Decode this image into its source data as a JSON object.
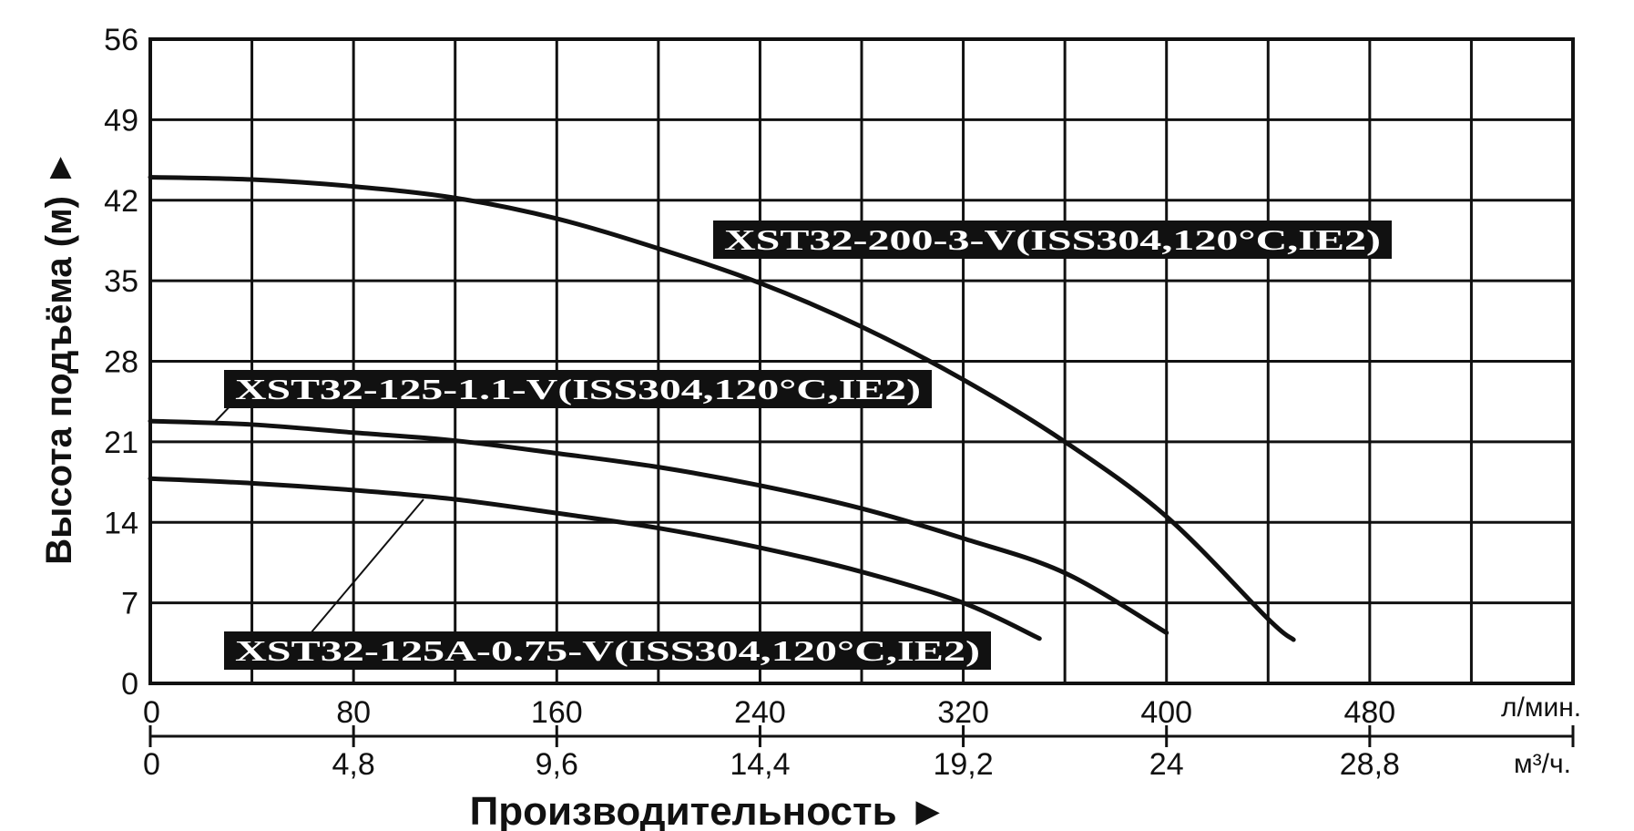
{
  "chart_data": {
    "type": "line",
    "ylabel": "Высота подъёма (м) ►",
    "xlabel": "Производительность ►",
    "ylim": [
      0,
      56
    ],
    "yticks": [
      "0",
      "7",
      "14",
      "21",
      "28",
      "35",
      "42",
      "49",
      "56"
    ],
    "xlim": [
      0,
      560
    ],
    "x_units_primary": "л/мин.",
    "x_units_secondary": "м³/ч.",
    "xticks_primary": [
      "0",
      "80",
      "160",
      "240",
      "320",
      "400",
      "480"
    ],
    "xticks_secondary": [
      "0",
      "4,8",
      "9,6",
      "14,4",
      "19,2",
      "24",
      "28,8"
    ],
    "grid": true,
    "series": [
      {
        "name": "XST32-200-3-V(ISS304,120°C,IE2)",
        "points": [
          [
            0,
            44
          ],
          [
            40,
            43.8
          ],
          [
            80,
            43.2
          ],
          [
            120,
            42.2
          ],
          [
            160,
            40.4
          ],
          [
            200,
            37.8
          ],
          [
            240,
            34.8
          ],
          [
            280,
            31
          ],
          [
            320,
            26.4
          ],
          [
            360,
            21
          ],
          [
            400,
            14.5
          ],
          [
            440,
            5.6
          ],
          [
            450,
            3.8
          ]
        ]
      },
      {
        "name": "XST32-125-1.1-V(ISS304,120°C,IE2)",
        "points": [
          [
            0,
            22.8
          ],
          [
            40,
            22.5
          ],
          [
            80,
            21.8
          ],
          [
            120,
            21.1
          ],
          [
            160,
            20
          ],
          [
            200,
            18.8
          ],
          [
            240,
            17.2
          ],
          [
            280,
            15.2
          ],
          [
            320,
            12.6
          ],
          [
            360,
            9.6
          ],
          [
            400,
            4.4
          ]
        ]
      },
      {
        "name": "XST32-125A-0.75-V(ISS304,120°C,IE2)",
        "points": [
          [
            0,
            17.8
          ],
          [
            40,
            17.4
          ],
          [
            80,
            16.8
          ],
          [
            120,
            16
          ],
          [
            160,
            14.8
          ],
          [
            200,
            13.5
          ],
          [
            240,
            11.8
          ],
          [
            280,
            9.7
          ],
          [
            320,
            7
          ],
          [
            350,
            3.9
          ]
        ]
      }
    ]
  }
}
